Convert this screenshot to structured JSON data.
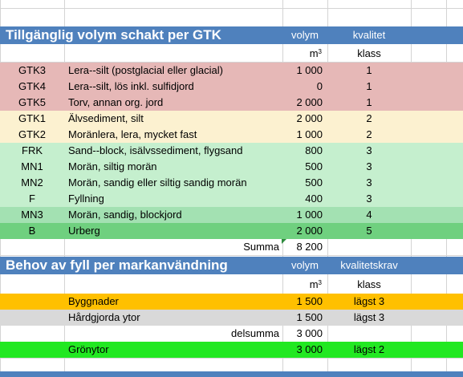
{
  "section1": {
    "title": "Tillgänglig volym schakt per GTK",
    "col_volume": "volym",
    "col_quality": "kvalitet",
    "unit_volume": "m",
    "unit_sup": "3",
    "unit_quality": "klass",
    "rows": [
      {
        "code": "GTK3",
        "desc": "Lera--silt (postglacial eller glacial)",
        "volume": "1 000",
        "quality": "1"
      },
      {
        "code": "GTK4",
        "desc": "Lera--silt, lös inkl. sulfidjord",
        "volume": "0",
        "quality": "1"
      },
      {
        "code": "GTK5",
        "desc": "Torv, annan org. jord",
        "volume": "2 000",
        "quality": "1"
      },
      {
        "code": "GTK1",
        "desc": "Älvsediment, silt",
        "volume": "2 000",
        "quality": "2"
      },
      {
        "code": "GTK2",
        "desc": "Moränlera, lera, mycket fast",
        "volume": "1 000",
        "quality": "2"
      },
      {
        "code": "FRK",
        "desc": "Sand--block, isälvssediment, flygsand",
        "volume": "800",
        "quality": "3"
      },
      {
        "code": "MN1",
        "desc": "Morän, siltig morän",
        "volume": "500",
        "quality": "3"
      },
      {
        "code": "MN2",
        "desc": "Morän, sandig eller siltig sandig morän",
        "volume": "500",
        "quality": "3"
      },
      {
        "code": "F",
        "desc": "Fyllning",
        "volume": "400",
        "quality": "3"
      },
      {
        "code": "MN3",
        "desc": "Morän, sandig, blockjord",
        "volume": "1 000",
        "quality": "4"
      },
      {
        "code": "B",
        "desc": "Urberg",
        "volume": "2 000",
        "quality": "5"
      }
    ],
    "sum_label": "Summa",
    "sum_value": "8 200"
  },
  "section2": {
    "title": "Behov av fyll per markanvändning",
    "col_volume": "volym",
    "col_quality": "kvalitetskrav",
    "unit_volume": "m",
    "unit_sup": "3",
    "unit_quality": "klass",
    "rows": [
      {
        "desc": "Byggnader",
        "volume": "1 500",
        "quality": "lägst 3"
      },
      {
        "desc": "Hårdgjorda ytor",
        "volume": "1 500",
        "quality": "lägst 3"
      }
    ],
    "subtotal_label": "delsumma",
    "subtotal_value": "3 000",
    "green_row": {
      "desc": "Grönytor",
      "volume": "3 000",
      "quality": "lägst 2"
    }
  },
  "colors": {
    "header": "#4f81bd",
    "class1": "#e6b8b7",
    "class2": "#fcf1d0",
    "class3": "#c5efce",
    "class4": "#a3e1b2",
    "class5": "#6fd07f",
    "buildings": "#ffc000",
    "paved": "#d9d9d9",
    "green_areas": "#22e822"
  }
}
